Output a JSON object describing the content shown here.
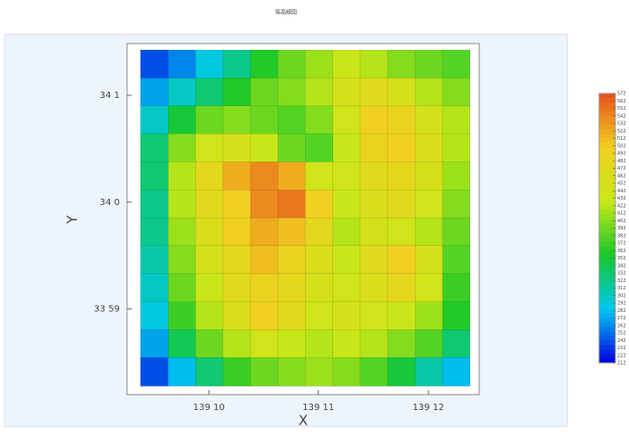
{
  "chart_data": {
    "type": "contour",
    "title": "等高線図",
    "xlabel": "X",
    "ylabel": "Y",
    "xlim": [
      139.15427,
      139.20771
    ],
    "ylim": [
      33.9699,
      34.0248
    ],
    "xticks": [
      {
        "value": 139.1667,
        "label": "139 10"
      },
      {
        "value": 139.1833,
        "label": "139 11"
      },
      {
        "value": 139.2,
        "label": "139 12"
      }
    ],
    "yticks": [
      {
        "value": 33.9833,
        "label": "33 59"
      },
      {
        "value": 34.0,
        "label": "34 0"
      },
      {
        "value": 34.0167,
        "label": "34 1"
      }
    ],
    "x": [
      139.1584,
      139.1626,
      139.1667,
      139.1709,
      139.1751,
      139.1792,
      139.1834,
      139.1876,
      139.1917,
      139.1959,
      139.2001,
      139.2042
    ],
    "y": [
      34.0216,
      34.0172,
      34.0129,
      34.0085,
      34.0041,
      33.9997,
      33.9954,
      33.991,
      33.9866,
      33.9822,
      33.9779,
      33.9735
    ],
    "z": [
      [
        240,
        260,
        290,
        320,
        360,
        390,
        410,
        430,
        420,
        400,
        390,
        380
      ],
      [
        270,
        300,
        330,
        360,
        390,
        400,
        420,
        450,
        470,
        450,
        420,
        400
      ],
      [
        300,
        350,
        390,
        400,
        390,
        380,
        400,
        440,
        500,
        490,
        450,
        420
      ],
      [
        330,
        400,
        440,
        450,
        430,
        390,
        380,
        430,
        490,
        500,
        460,
        420
      ],
      [
        330,
        420,
        480,
        520,
        540,
        520,
        440,
        440,
        470,
        480,
        450,
        410
      ],
      [
        320,
        420,
        470,
        500,
        540,
        550,
        500,
        430,
        460,
        470,
        440,
        400
      ],
      [
        320,
        410,
        460,
        500,
        520,
        510,
        480,
        420,
        450,
        440,
        420,
        390
      ],
      [
        310,
        400,
        450,
        480,
        510,
        490,
        460,
        430,
        470,
        500,
        450,
        380
      ],
      [
        300,
        390,
        430,
        470,
        490,
        480,
        450,
        440,
        460,
        480,
        440,
        370
      ],
      [
        290,
        370,
        420,
        460,
        500,
        470,
        440,
        450,
        440,
        430,
        410,
        360
      ],
      [
        270,
        340,
        390,
        420,
        440,
        430,
        420,
        430,
        420,
        400,
        380,
        330
      ],
      [
        240,
        280,
        330,
        370,
        390,
        400,
        410,
        400,
        380,
        350,
        310,
        280
      ]
    ],
    "zlim": [
      212,
      572
    ],
    "zticks": [
      572,
      562,
      552,
      542,
      532,
      522,
      512,
      502,
      492,
      482,
      472,
      462,
      452,
      442,
      432,
      422,
      412,
      402,
      392,
      382,
      372,
      362,
      352,
      342,
      332,
      322,
      312,
      302,
      292,
      282,
      272,
      262,
      252,
      242,
      232,
      222,
      212
    ],
    "colors": [
      "#0000e0",
      "#00c8f0",
      "#18c828",
      "#c8e818",
      "#f0d020",
      "#e8501c"
    ]
  }
}
